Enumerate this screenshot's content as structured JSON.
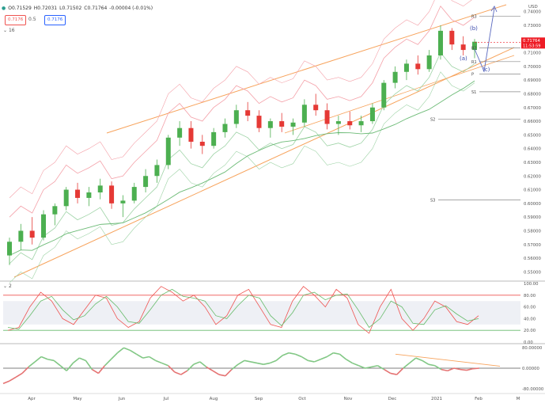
{
  "legend": {
    "open": "O0.71529",
    "high": "H0.72031",
    "low": "L0.71502",
    "close": "C0.71764",
    "change": "-0.00004 (-0.01%)",
    "bb_value1": "0.7176",
    "bb_mid": "0.5",
    "bb_value2": "0.7176",
    "indicator_count": "16",
    "sub_indicator_count": "2"
  },
  "colors": {
    "up": "#26a69a",
    "down": "#ef5350",
    "up_candle": "#4caf50",
    "down_candle": "#e53935",
    "channel": "#f7a35c",
    "bb": "#f4a0a8",
    "green_bb": "#9ed3a6",
    "accent_blue": "#2962ff",
    "price_tag": "#ee1c25"
  },
  "chart_data": [
    {
      "type": "candlestick",
      "symbol_currency": "USD",
      "x_labels": [
        "Apr",
        "May",
        "Jun",
        "Jul",
        "Aug",
        "Sep",
        "Oct",
        "Nov",
        "Dec",
        "2021",
        "Feb",
        "M"
      ],
      "y_ticks": [
        "0.74000",
        "0.73000",
        "0.72000",
        "0.71000",
        "0.70000",
        "0.69000",
        "0.68000",
        "0.67000",
        "0.66000",
        "0.65000",
        "0.64000",
        "0.63000",
        "0.62000",
        "0.61000",
        "0.60000",
        "0.59000",
        "0.58000",
        "0.57000",
        "0.56000",
        "0.55000"
      ],
      "ylim": [
        0.545,
        0.745
      ],
      "last_price": "0.71764",
      "countdown": "11:53:59",
      "wave_labels": [
        "(b)",
        "(a)",
        "(c)"
      ],
      "pivot_labels": [
        "R3",
        "R2",
        "R1",
        "P",
        "S1",
        "S2",
        "S3"
      ],
      "pivot_levels": [
        0.7365,
        0.7135,
        0.7035,
        0.6945,
        0.6815,
        0.6615,
        0.6025
      ],
      "close_path": [
        [
          0.562,
          0.575,
          0.555,
          0.572
        ],
        [
          0.572,
          0.585,
          0.566,
          0.58
        ],
        [
          0.58,
          0.59,
          0.57,
          0.575
        ],
        [
          0.575,
          0.595,
          0.573,
          0.592
        ],
        [
          0.592,
          0.6,
          0.584,
          0.598
        ],
        [
          0.598,
          0.612,
          0.595,
          0.61
        ],
        [
          0.61,
          0.615,
          0.6,
          0.604
        ],
        [
          0.604,
          0.612,
          0.598,
          0.608
        ],
        [
          0.608,
          0.618,
          0.603,
          0.613
        ],
        [
          0.613,
          0.616,
          0.596,
          0.6
        ],
        [
          0.6,
          0.606,
          0.59,
          0.602
        ],
        [
          0.602,
          0.615,
          0.6,
          0.612
        ],
        [
          0.612,
          0.625,
          0.608,
          0.62
        ],
        [
          0.62,
          0.632,
          0.615,
          0.628
        ],
        [
          0.628,
          0.65,
          0.625,
          0.648
        ],
        [
          0.648,
          0.66,
          0.642,
          0.655
        ],
        [
          0.655,
          0.66,
          0.64,
          0.645
        ],
        [
          0.645,
          0.65,
          0.636,
          0.642
        ],
        [
          0.642,
          0.655,
          0.64,
          0.652
        ],
        [
          0.652,
          0.662,
          0.648,
          0.658
        ],
        [
          0.658,
          0.672,
          0.655,
          0.668
        ],
        [
          0.668,
          0.674,
          0.66,
          0.664
        ],
        [
          0.664,
          0.668,
          0.652,
          0.655
        ],
        [
          0.655,
          0.662,
          0.648,
          0.66
        ],
        [
          0.66,
          0.666,
          0.652,
          0.656
        ],
        [
          0.656,
          0.662,
          0.65,
          0.659
        ],
        [
          0.659,
          0.676,
          0.656,
          0.672
        ],
        [
          0.672,
          0.68,
          0.664,
          0.668
        ],
        [
          0.668,
          0.673,
          0.654,
          0.658
        ],
        [
          0.658,
          0.664,
          0.65,
          0.66
        ],
        [
          0.66,
          0.667,
          0.654,
          0.657
        ],
        [
          0.657,
          0.664,
          0.652,
          0.66
        ],
        [
          0.66,
          0.673,
          0.658,
          0.67
        ],
        [
          0.67,
          0.69,
          0.668,
          0.688
        ],
        [
          0.688,
          0.7,
          0.684,
          0.696
        ],
        [
          0.696,
          0.705,
          0.69,
          0.702
        ],
        [
          0.702,
          0.708,
          0.694,
          0.698
        ],
        [
          0.698,
          0.712,
          0.696,
          0.708
        ],
        [
          0.708,
          0.73,
          0.705,
          0.726
        ],
        [
          0.726,
          0.728,
          0.712,
          0.716
        ],
        [
          0.716,
          0.722,
          0.708,
          0.712
        ],
        [
          0.712,
          0.72,
          0.706,
          0.718
        ]
      ]
    },
    {
      "type": "line",
      "name": "oscillator",
      "y_ticks": [
        "100.00",
        "80.00",
        "60.00",
        "40.00",
        "20.00",
        "0.00"
      ],
      "ylim": [
        0,
        100
      ],
      "levels": [
        80,
        20
      ],
      "k": [
        20,
        25,
        60,
        85,
        70,
        40,
        30,
        55,
        80,
        75,
        40,
        25,
        35,
        75,
        95,
        85,
        70,
        80,
        60,
        30,
        45,
        80,
        90,
        60,
        30,
        25,
        70,
        95,
        80,
        60,
        90,
        75,
        30,
        15,
        60,
        90,
        40,
        20,
        40,
        70,
        60,
        35,
        30,
        45
      ],
      "d": [
        25,
        22,
        45,
        70,
        78,
        55,
        38,
        45,
        65,
        78,
        60,
        35,
        32,
        55,
        80,
        90,
        78,
        75,
        70,
        45,
        40,
        62,
        80,
        75,
        45,
        28,
        50,
        80,
        85,
        72,
        80,
        82,
        55,
        25,
        40,
        70,
        60,
        32,
        30,
        55,
        62,
        48,
        36,
        40
      ]
    },
    {
      "type": "line",
      "name": "momentum",
      "y_ticks": [
        "80.00000",
        "0.00000",
        "-80.00000"
      ],
      "ylim": [
        -90,
        90
      ],
      "values": [
        -60,
        -50,
        -35,
        -20,
        5,
        25,
        45,
        35,
        30,
        10,
        -10,
        20,
        40,
        30,
        -5,
        -20,
        10,
        35,
        60,
        80,
        70,
        55,
        40,
        45,
        30,
        20,
        10,
        -15,
        -25,
        -10,
        15,
        25,
        5,
        -10,
        -25,
        -30,
        -5,
        15,
        30,
        25,
        20,
        15,
        20,
        30,
        50,
        60,
        55,
        45,
        30,
        25,
        35,
        45,
        60,
        55,
        35,
        20,
        10,
        0,
        5,
        10,
        -5,
        -20,
        -25,
        0,
        20,
        40,
        30,
        15,
        10,
        -5,
        -10,
        0,
        -5,
        -8,
        -2,
        0
      ]
    }
  ]
}
